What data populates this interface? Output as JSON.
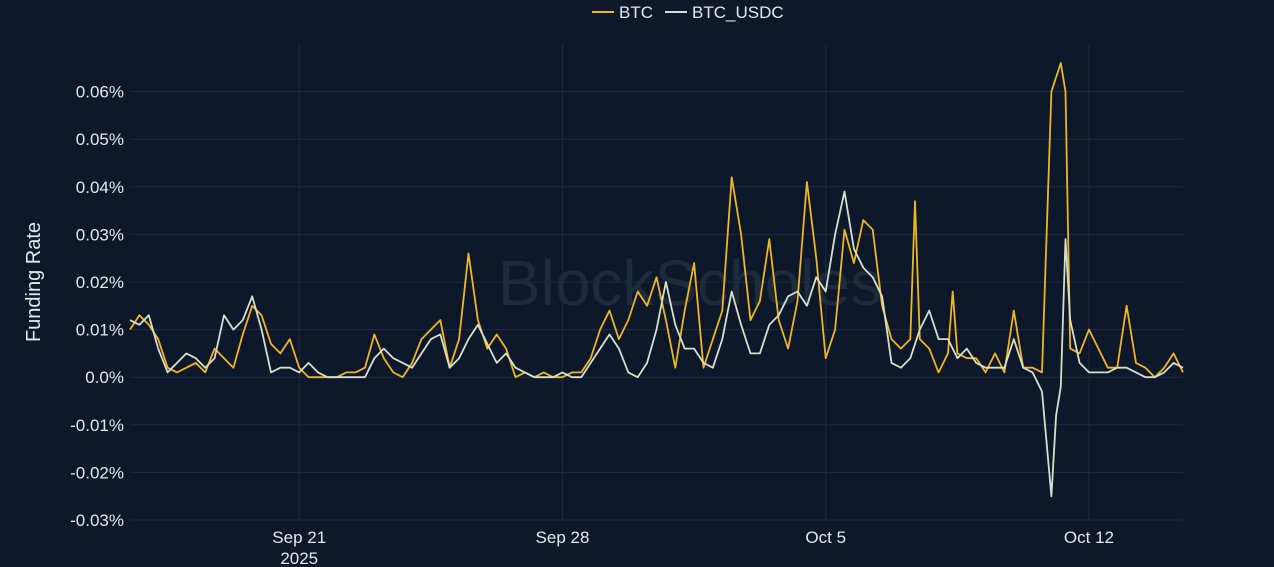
{
  "chart_data": {
    "type": "line",
    "title": "",
    "watermark": "BlockScholes",
    "ylabel": "Funding Rate",
    "xlabel": "",
    "ylim": [
      -0.03,
      0.07
    ],
    "y_ticks": [
      -0.03,
      -0.02,
      -0.01,
      0.0,
      0.01,
      0.02,
      0.03,
      0.04,
      0.05,
      0.06
    ],
    "y_tick_labels": [
      "-0.03%",
      "-0.02%",
      "-0.01%",
      "0.0%",
      "0.01%",
      "0.02%",
      "0.03%",
      "0.04%",
      "0.05%",
      "0.06%"
    ],
    "x_range": [
      "2025-09-16T12:00",
      "2025-10-14T12:00"
    ],
    "x_ticks": [
      {
        "date": "2025-09-21",
        "label": "Sep 21",
        "sublabel": "2025"
      },
      {
        "date": "2025-09-28",
        "label": "Sep 28",
        "sublabel": ""
      },
      {
        "date": "2025-10-05",
        "label": "Oct 5",
        "sublabel": ""
      },
      {
        "date": "2025-10-12",
        "label": "Oct 12",
        "sublabel": ""
      }
    ],
    "grid": true,
    "legend_position": "top-center",
    "series": [
      {
        "name": "BTC",
        "color": "#e8b923",
        "points": [
          [
            "2025-09-16T12:00",
            0.01
          ],
          [
            "2025-09-16T18:00",
            0.013
          ],
          [
            "2025-09-17T00:00",
            0.011
          ],
          [
            "2025-09-17T06:00",
            0.008
          ],
          [
            "2025-09-17T12:00",
            0.002
          ],
          [
            "2025-09-17T18:00",
            0.001
          ],
          [
            "2025-09-18T00:00",
            0.002
          ],
          [
            "2025-09-18T06:00",
            0.003
          ],
          [
            "2025-09-18T12:00",
            0.001
          ],
          [
            "2025-09-18T18:00",
            0.006
          ],
          [
            "2025-09-19T00:00",
            0.004
          ],
          [
            "2025-09-19T06:00",
            0.002
          ],
          [
            "2025-09-19T12:00",
            0.009
          ],
          [
            "2025-09-19T18:00",
            0.015
          ],
          [
            "2025-09-20T00:00",
            0.013
          ],
          [
            "2025-09-20T06:00",
            0.007
          ],
          [
            "2025-09-20T12:00",
            0.005
          ],
          [
            "2025-09-20T18:00",
            0.008
          ],
          [
            "2025-09-21T00:00",
            0.002
          ],
          [
            "2025-09-21T06:00",
            0.0
          ],
          [
            "2025-09-21T12:00",
            0.0
          ],
          [
            "2025-09-21T18:00",
            0.0
          ],
          [
            "2025-09-22T00:00",
            0.0
          ],
          [
            "2025-09-22T06:00",
            0.001
          ],
          [
            "2025-09-22T12:00",
            0.001
          ],
          [
            "2025-09-22T18:00",
            0.002
          ],
          [
            "2025-09-23T00:00",
            0.009
          ],
          [
            "2025-09-23T06:00",
            0.004
          ],
          [
            "2025-09-23T12:00",
            0.001
          ],
          [
            "2025-09-23T18:00",
            0.0
          ],
          [
            "2025-09-24T00:00",
            0.003
          ],
          [
            "2025-09-24T06:00",
            0.008
          ],
          [
            "2025-09-24T12:00",
            0.01
          ],
          [
            "2025-09-24T18:00",
            0.012
          ],
          [
            "2025-09-25T00:00",
            0.002
          ],
          [
            "2025-09-25T06:00",
            0.008
          ],
          [
            "2025-09-25T12:00",
            0.026
          ],
          [
            "2025-09-25T18:00",
            0.012
          ],
          [
            "2025-09-26T00:00",
            0.006
          ],
          [
            "2025-09-26T06:00",
            0.009
          ],
          [
            "2025-09-26T12:00",
            0.006
          ],
          [
            "2025-09-26T18:00",
            0.0
          ],
          [
            "2025-09-27T00:00",
            0.001
          ],
          [
            "2025-09-27T06:00",
            0.0
          ],
          [
            "2025-09-27T12:00",
            0.001
          ],
          [
            "2025-09-27T18:00",
            0.0
          ],
          [
            "2025-09-28T00:00",
            0.0
          ],
          [
            "2025-09-28T06:00",
            0.001
          ],
          [
            "2025-09-28T12:00",
            0.001
          ],
          [
            "2025-09-28T18:00",
            0.004
          ],
          [
            "2025-09-29T00:00",
            0.01
          ],
          [
            "2025-09-29T06:00",
            0.014
          ],
          [
            "2025-09-29T12:00",
            0.008
          ],
          [
            "2025-09-29T18:00",
            0.012
          ],
          [
            "2025-09-30T00:00",
            0.018
          ],
          [
            "2025-09-30T06:00",
            0.015
          ],
          [
            "2025-09-30T12:00",
            0.021
          ],
          [
            "2025-09-30T18:00",
            0.012
          ],
          [
            "2025-10-01T00:00",
            0.002
          ],
          [
            "2025-10-01T06:00",
            0.014
          ],
          [
            "2025-10-01T12:00",
            0.024
          ],
          [
            "2025-10-01T18:00",
            0.002
          ],
          [
            "2025-10-02T00:00",
            0.008
          ],
          [
            "2025-10-02T06:00",
            0.014
          ],
          [
            "2025-10-02T12:00",
            0.042
          ],
          [
            "2025-10-02T18:00",
            0.03
          ],
          [
            "2025-10-03T00:00",
            0.012
          ],
          [
            "2025-10-03T06:00",
            0.016
          ],
          [
            "2025-10-03T12:00",
            0.029
          ],
          [
            "2025-10-03T18:00",
            0.012
          ],
          [
            "2025-10-04T00:00",
            0.006
          ],
          [
            "2025-10-04T06:00",
            0.016
          ],
          [
            "2025-10-04T12:00",
            0.041
          ],
          [
            "2025-10-04T18:00",
            0.025
          ],
          [
            "2025-10-05T00:00",
            0.004
          ],
          [
            "2025-10-05T06:00",
            0.01
          ],
          [
            "2025-10-05T12:00",
            0.031
          ],
          [
            "2025-10-05T18:00",
            0.024
          ],
          [
            "2025-10-06T00:00",
            0.033
          ],
          [
            "2025-10-06T06:00",
            0.031
          ],
          [
            "2025-10-06T12:00",
            0.015
          ],
          [
            "2025-10-06T18:00",
            0.008
          ],
          [
            "2025-10-07T00:00",
            0.006
          ],
          [
            "2025-10-07T06:00",
            0.008
          ],
          [
            "2025-10-07T09:00",
            0.037
          ],
          [
            "2025-10-07T12:00",
            0.008
          ],
          [
            "2025-10-07T18:00",
            0.006
          ],
          [
            "2025-10-08T00:00",
            0.001
          ],
          [
            "2025-10-08T06:00",
            0.005
          ],
          [
            "2025-10-08T09:00",
            0.018
          ],
          [
            "2025-10-08T12:00",
            0.005
          ],
          [
            "2025-10-08T18:00",
            0.004
          ],
          [
            "2025-10-09T00:00",
            0.004
          ],
          [
            "2025-10-09T06:00",
            0.001
          ],
          [
            "2025-10-09T12:00",
            0.005
          ],
          [
            "2025-10-09T18:00",
            0.001
          ],
          [
            "2025-10-10T00:00",
            0.014
          ],
          [
            "2025-10-10T06:00",
            0.002
          ],
          [
            "2025-10-10T12:00",
            0.002
          ],
          [
            "2025-10-10T18:00",
            0.001
          ],
          [
            "2025-10-11T00:00",
            0.06
          ],
          [
            "2025-10-11T06:00",
            0.066
          ],
          [
            "2025-10-11T09:00",
            0.06
          ],
          [
            "2025-10-11T12:00",
            0.006
          ],
          [
            "2025-10-11T18:00",
            0.005
          ],
          [
            "2025-10-12T00:00",
            0.01
          ],
          [
            "2025-10-12T06:00",
            0.006
          ],
          [
            "2025-10-12T12:00",
            0.002
          ],
          [
            "2025-10-12T18:00",
            0.002
          ],
          [
            "2025-10-13T00:00",
            0.015
          ],
          [
            "2025-10-13T06:00",
            0.003
          ],
          [
            "2025-10-13T12:00",
            0.002
          ],
          [
            "2025-10-13T18:00",
            0.0
          ],
          [
            "2025-10-14T00:00",
            0.002
          ],
          [
            "2025-10-14T06:00",
            0.005
          ],
          [
            "2025-10-14T12:00",
            0.001
          ]
        ]
      },
      {
        "name": "BTC_USDC",
        "color": "#d6dfc8",
        "points": [
          [
            "2025-09-16T12:00",
            0.012
          ],
          [
            "2025-09-16T18:00",
            0.011
          ],
          [
            "2025-09-17T00:00",
            0.013
          ],
          [
            "2025-09-17T06:00",
            0.006
          ],
          [
            "2025-09-17T12:00",
            0.001
          ],
          [
            "2025-09-17T18:00",
            0.003
          ],
          [
            "2025-09-18T00:00",
            0.005
          ],
          [
            "2025-09-18T06:00",
            0.004
          ],
          [
            "2025-09-18T12:00",
            0.002
          ],
          [
            "2025-09-18T18:00",
            0.004
          ],
          [
            "2025-09-19T00:00",
            0.013
          ],
          [
            "2025-09-19T06:00",
            0.01
          ],
          [
            "2025-09-19T12:00",
            0.012
          ],
          [
            "2025-09-19T18:00",
            0.017
          ],
          [
            "2025-09-20T00:00",
            0.01
          ],
          [
            "2025-09-20T06:00",
            0.001
          ],
          [
            "2025-09-20T12:00",
            0.002
          ],
          [
            "2025-09-20T18:00",
            0.002
          ],
          [
            "2025-09-21T00:00",
            0.001
          ],
          [
            "2025-09-21T06:00",
            0.003
          ],
          [
            "2025-09-21T12:00",
            0.001
          ],
          [
            "2025-09-21T18:00",
            0.0
          ],
          [
            "2025-09-22T00:00",
            0.0
          ],
          [
            "2025-09-22T06:00",
            0.0
          ],
          [
            "2025-09-22T12:00",
            0.0
          ],
          [
            "2025-09-22T18:00",
            0.0
          ],
          [
            "2025-09-23T00:00",
            0.004
          ],
          [
            "2025-09-23T06:00",
            0.006
          ],
          [
            "2025-09-23T12:00",
            0.004
          ],
          [
            "2025-09-23T18:00",
            0.003
          ],
          [
            "2025-09-24T00:00",
            0.002
          ],
          [
            "2025-09-24T06:00",
            0.005
          ],
          [
            "2025-09-24T12:00",
            0.008
          ],
          [
            "2025-09-24T18:00",
            0.009
          ],
          [
            "2025-09-25T00:00",
            0.002
          ],
          [
            "2025-09-25T06:00",
            0.004
          ],
          [
            "2025-09-25T12:00",
            0.008
          ],
          [
            "2025-09-25T18:00",
            0.011
          ],
          [
            "2025-09-26T00:00",
            0.007
          ],
          [
            "2025-09-26T06:00",
            0.003
          ],
          [
            "2025-09-26T12:00",
            0.005
          ],
          [
            "2025-09-26T18:00",
            0.002
          ],
          [
            "2025-09-27T00:00",
            0.001
          ],
          [
            "2025-09-27T06:00",
            0.0
          ],
          [
            "2025-09-27T12:00",
            0.0
          ],
          [
            "2025-09-27T18:00",
            0.0
          ],
          [
            "2025-09-28T00:00",
            0.001
          ],
          [
            "2025-09-28T06:00",
            0.0
          ],
          [
            "2025-09-28T12:00",
            0.0
          ],
          [
            "2025-09-28T18:00",
            0.003
          ],
          [
            "2025-09-29T00:00",
            0.006
          ],
          [
            "2025-09-29T06:00",
            0.009
          ],
          [
            "2025-09-29T12:00",
            0.006
          ],
          [
            "2025-09-29T18:00",
            0.001
          ],
          [
            "2025-09-30T00:00",
            0.0
          ],
          [
            "2025-09-30T06:00",
            0.003
          ],
          [
            "2025-09-30T12:00",
            0.01
          ],
          [
            "2025-09-30T18:00",
            0.02
          ],
          [
            "2025-10-01T00:00",
            0.011
          ],
          [
            "2025-10-01T06:00",
            0.006
          ],
          [
            "2025-10-01T12:00",
            0.006
          ],
          [
            "2025-10-01T18:00",
            0.003
          ],
          [
            "2025-10-02T00:00",
            0.002
          ],
          [
            "2025-10-02T06:00",
            0.008
          ],
          [
            "2025-10-02T12:00",
            0.018
          ],
          [
            "2025-10-02T18:00",
            0.011
          ],
          [
            "2025-10-03T00:00",
            0.005
          ],
          [
            "2025-10-03T06:00",
            0.005
          ],
          [
            "2025-10-03T12:00",
            0.011
          ],
          [
            "2025-10-03T18:00",
            0.013
          ],
          [
            "2025-10-04T00:00",
            0.017
          ],
          [
            "2025-10-04T06:00",
            0.018
          ],
          [
            "2025-10-04T12:00",
            0.015
          ],
          [
            "2025-10-04T18:00",
            0.021
          ],
          [
            "2025-10-05T00:00",
            0.018
          ],
          [
            "2025-10-05T06:00",
            0.03
          ],
          [
            "2025-10-05T12:00",
            0.039
          ],
          [
            "2025-10-05T18:00",
            0.027
          ],
          [
            "2025-10-06T00:00",
            0.023
          ],
          [
            "2025-10-06T06:00",
            0.021
          ],
          [
            "2025-10-06T12:00",
            0.017
          ],
          [
            "2025-10-06T18:00",
            0.003
          ],
          [
            "2025-10-07T00:00",
            0.002
          ],
          [
            "2025-10-07T06:00",
            0.004
          ],
          [
            "2025-10-07T12:00",
            0.01
          ],
          [
            "2025-10-07T18:00",
            0.014
          ],
          [
            "2025-10-08T00:00",
            0.008
          ],
          [
            "2025-10-08T06:00",
            0.008
          ],
          [
            "2025-10-08T12:00",
            0.004
          ],
          [
            "2025-10-08T18:00",
            0.006
          ],
          [
            "2025-10-09T00:00",
            0.003
          ],
          [
            "2025-10-09T06:00",
            0.002
          ],
          [
            "2025-10-09T12:00",
            0.002
          ],
          [
            "2025-10-09T18:00",
            0.002
          ],
          [
            "2025-10-10T00:00",
            0.008
          ],
          [
            "2025-10-10T06:00",
            0.002
          ],
          [
            "2025-10-10T12:00",
            0.001
          ],
          [
            "2025-10-10T18:00",
            -0.003
          ],
          [
            "2025-10-11T00:00",
            -0.025
          ],
          [
            "2025-10-11T03:00",
            -0.008
          ],
          [
            "2025-10-11T06:00",
            -0.002
          ],
          [
            "2025-10-11T09:00",
            0.029
          ],
          [
            "2025-10-11T12:00",
            0.012
          ],
          [
            "2025-10-11T18:00",
            0.003
          ],
          [
            "2025-10-12T00:00",
            0.001
          ],
          [
            "2025-10-12T06:00",
            0.001
          ],
          [
            "2025-10-12T12:00",
            0.001
          ],
          [
            "2025-10-12T18:00",
            0.002
          ],
          [
            "2025-10-13T00:00",
            0.002
          ],
          [
            "2025-10-13T06:00",
            0.001
          ],
          [
            "2025-10-13T12:00",
            0.0
          ],
          [
            "2025-10-13T18:00",
            0.0
          ],
          [
            "2025-10-14T00:00",
            0.001
          ],
          [
            "2025-10-14T06:00",
            0.003
          ],
          [
            "2025-10-14T12:00",
            0.002
          ]
        ]
      }
    ]
  }
}
